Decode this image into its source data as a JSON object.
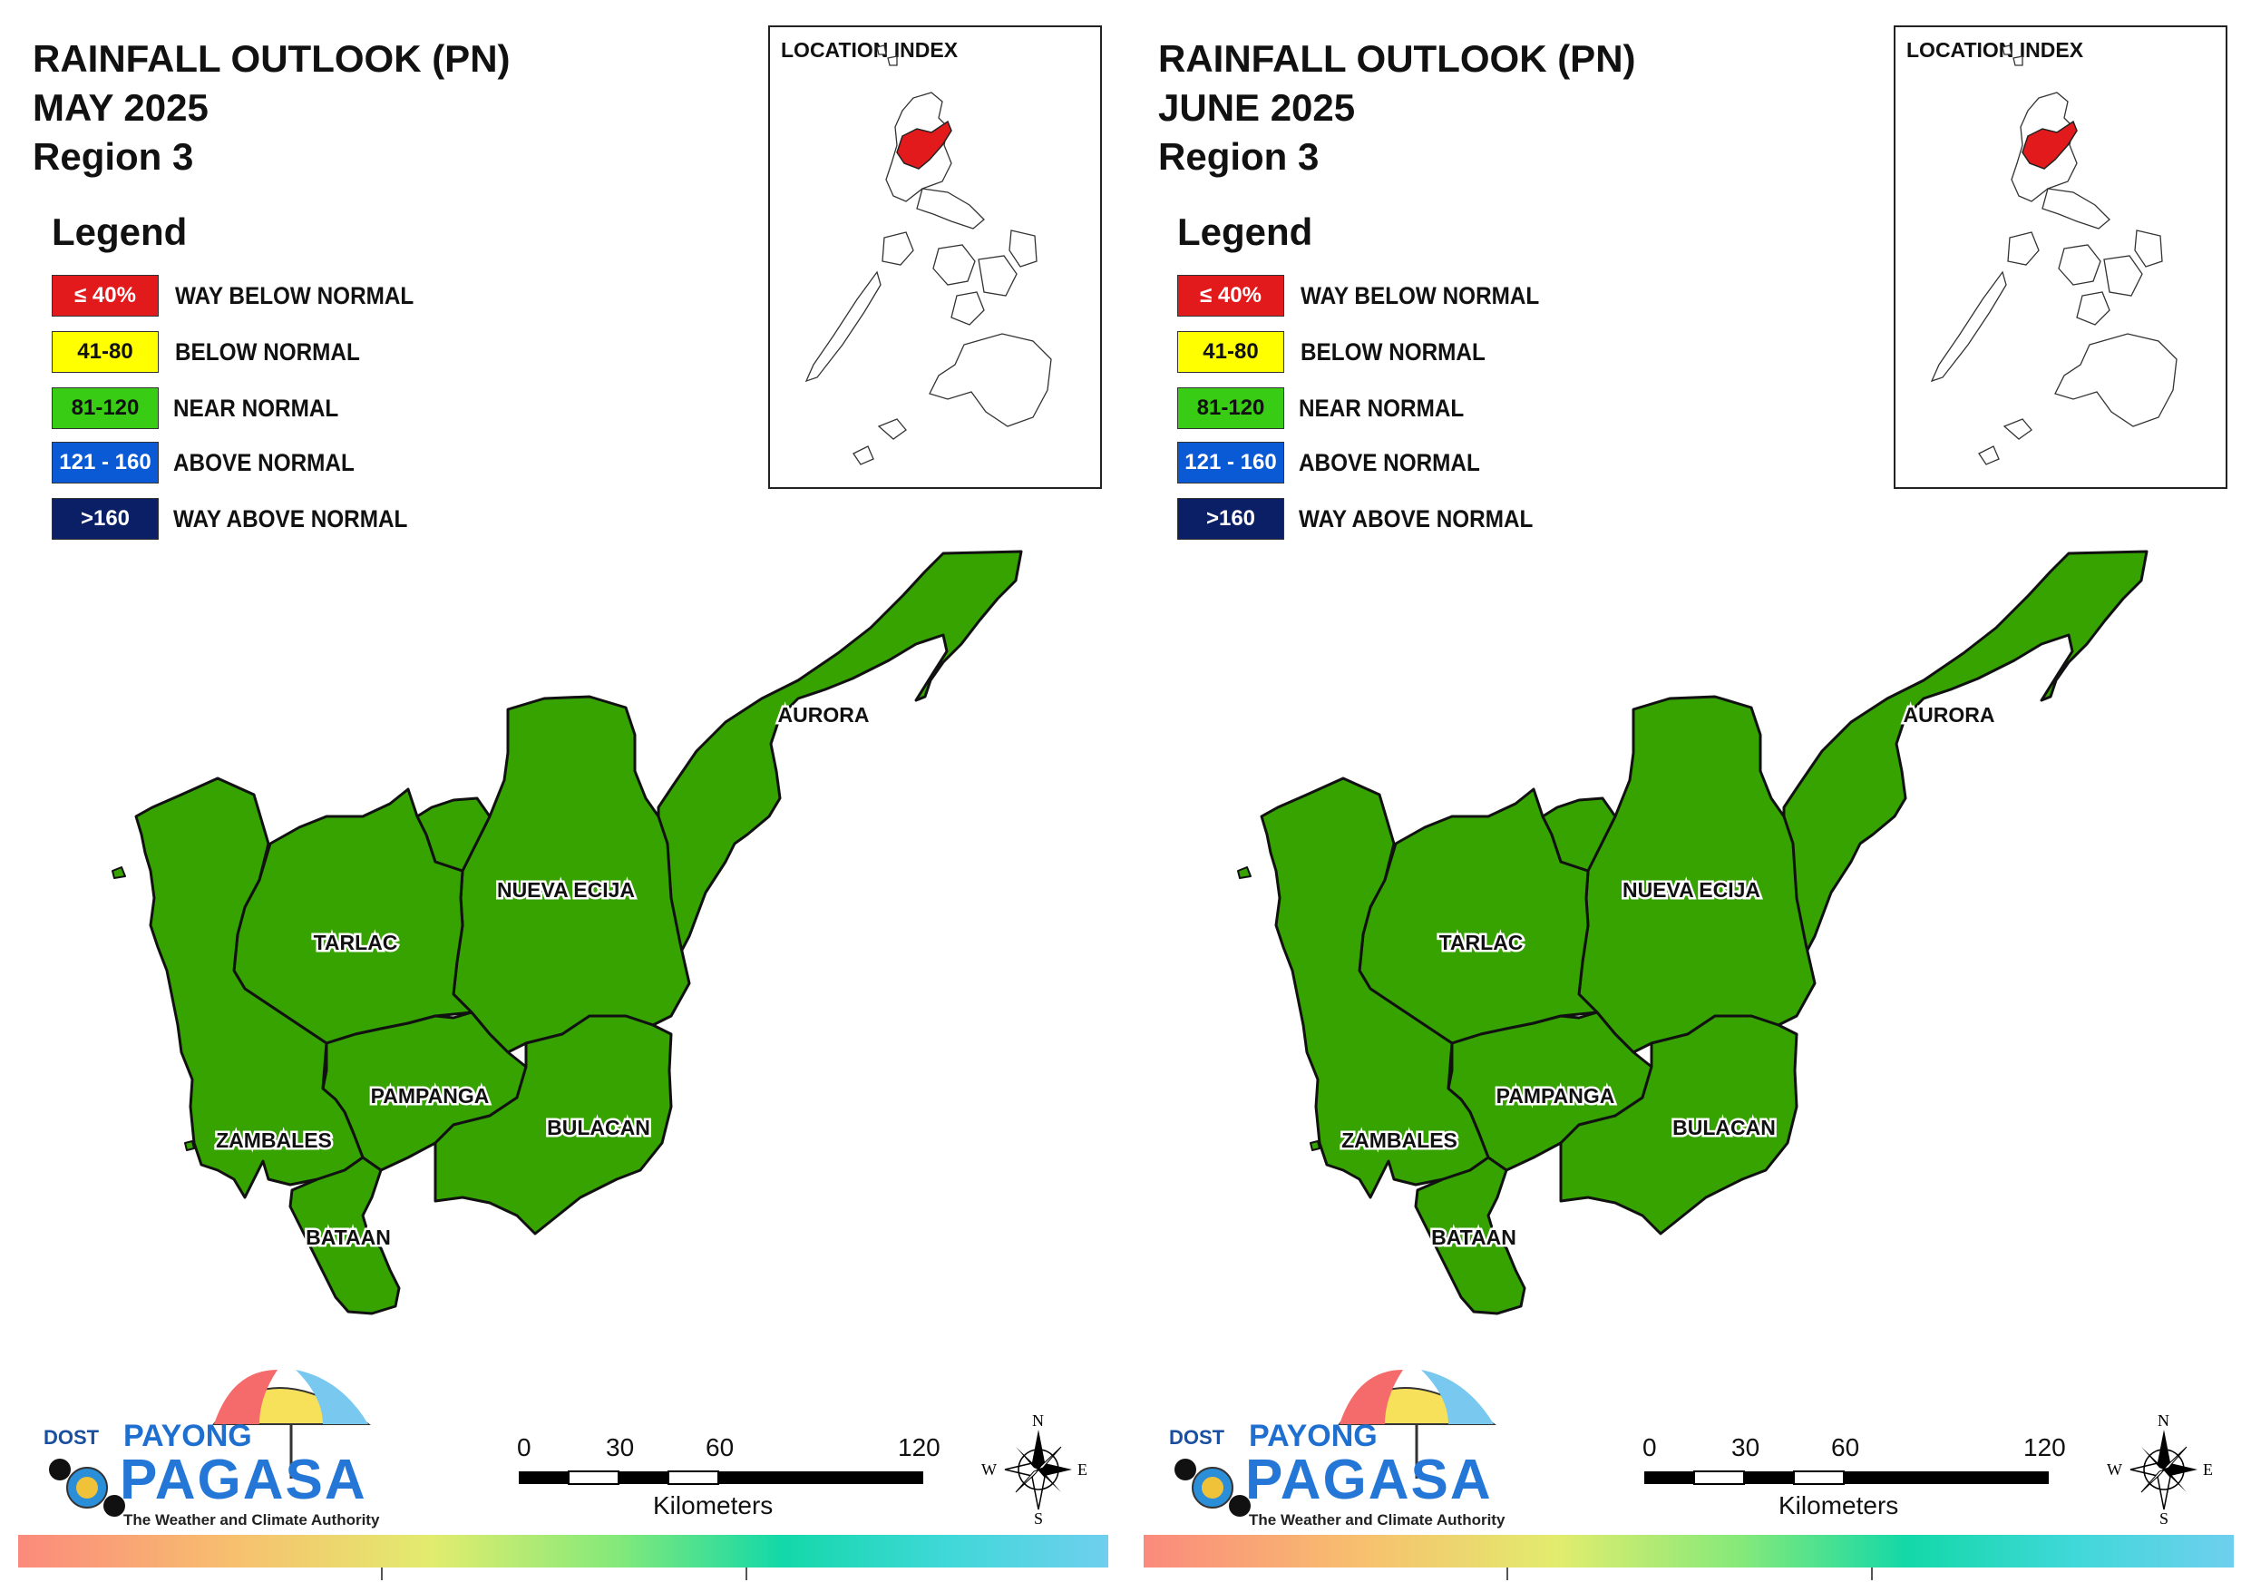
{
  "panels": [
    {
      "title_line1": "RAINFALL OUTLOOK (PN)",
      "title_line2": "MAY 2025",
      "title_line3": "Region 3"
    },
    {
      "title_line1": "RAINFALL OUTLOOK (PN)",
      "title_line2": "JUNE 2025",
      "title_line3": "Region 3"
    }
  ],
  "legend": {
    "title": "Legend",
    "items": [
      {
        "range": "≤ 40%",
        "label": "WAY BELOW NORMAL",
        "color": "#e31a1c",
        "text_color": "#ffffff"
      },
      {
        "range": "41-80",
        "label": "BELOW NORMAL",
        "color": "#ffff00",
        "text_color": "#111111"
      },
      {
        "range": "81-120",
        "label": "NEAR NORMAL",
        "color": "#38cc14",
        "text_color": "#111111"
      },
      {
        "range": "121 - 160",
        "label": "ABOVE NORMAL",
        "color": "#0a5ad6",
        "text_color": "#ffffff"
      },
      {
        "range": ">160",
        "label": "WAY ABOVE NORMAL",
        "color": "#0a1f66",
        "text_color": "#ffffff"
      }
    ]
  },
  "inset": {
    "title": "LOCATION INDEX",
    "highlight_color": "#e31a1c"
  },
  "map": {
    "fill_color": "#36a300",
    "provinces": [
      {
        "name": "AURORA",
        "category": "NEAR NORMAL"
      },
      {
        "name": "NUEVA ECIJA",
        "category": "NEAR NORMAL"
      },
      {
        "name": "TARLAC",
        "category": "NEAR NORMAL"
      },
      {
        "name": "PAMPANGA",
        "category": "NEAR NORMAL"
      },
      {
        "name": "BULACAN",
        "category": "NEAR NORMAL"
      },
      {
        "name": "ZAMBALES",
        "category": "NEAR NORMAL"
      },
      {
        "name": "BATAAN",
        "category": "NEAR NORMAL"
      }
    ]
  },
  "logo": {
    "dost": "DOST",
    "payong": "PAYONG",
    "pagasa": "PAGASA",
    "tagline": "The Weather and Climate Authority"
  },
  "scale": {
    "ticks": [
      "0",
      "30",
      "60",
      "120"
    ],
    "unit": "Kilometers"
  },
  "compass": {
    "n": "N",
    "s": "S",
    "e": "E",
    "w": "W"
  }
}
